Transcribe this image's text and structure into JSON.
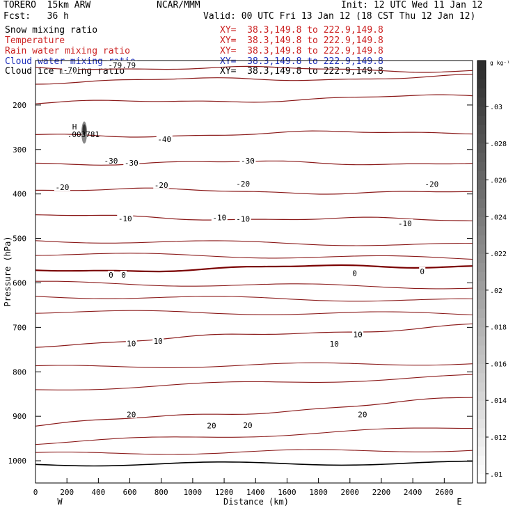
{
  "header": {
    "model": "TORERO  15km ARW",
    "center": "NCAR/MMM",
    "init": "Init: 12 UTC Wed 11 Jan 12",
    "fcst": "Fcst:   36 h",
    "valid": "Valid: 00 UTC Fri 13 Jan 12 (18 CST Thu 12 Jan 12)"
  },
  "fields": [
    {
      "label": "Snow mixing ratio",
      "xy": "XY=  38.3,149.8 to 222.9,149.8",
      "color": "#000000"
    },
    {
      "label": "Temperature",
      "xy": "XY=  38.3,149.8 to 222.9,149.8",
      "color": "#cc2222"
    },
    {
      "label": "Rain water mixing ratio",
      "xy": "XY=  38.3,149.8 to 222.9,149.8",
      "color": "#cc2222"
    },
    {
      "label": "Cloud water mixing ratio",
      "xy": "XY=  38.3,149.8 to 222.9,149.8",
      "color": "#2233bb"
    },
    {
      "label": "Cloud ice mixing ratio",
      "xy": "XY=  38.3,149.8 to 222.9,149.8",
      "color": "#000000"
    }
  ],
  "chart_data": {
    "type": "contour",
    "xlabel": "Distance (km)",
    "ylabel": "Pressure (hPa)",
    "xlim": [
      0,
      2780
    ],
    "ylim": [
      1050,
      100
    ],
    "xticks": [
      0,
      200,
      400,
      600,
      800,
      1000,
      1200,
      1400,
      1600,
      1800,
      2000,
      2200,
      2400,
      2600
    ],
    "yticks": [
      200,
      300,
      400,
      500,
      600,
      700,
      800,
      900,
      1000
    ],
    "x_end_labels": {
      "left": "W",
      "right": "E"
    },
    "max_label": {
      "marker": "H",
      "value": ".003781",
      "x": 310,
      "p": 262
    },
    "isotherms": [
      {
        "value": -70,
        "p_left": 115,
        "p_right": 122
      },
      {
        "value": -60,
        "p_left": 148,
        "p_right": 136
      },
      {
        "value": -50,
        "p_left": 197,
        "p_right": 180
      },
      {
        "value": -40,
        "p_left": 270,
        "p_right": 260
      },
      {
        "value": -30,
        "p_left": 330,
        "p_right": 330
      },
      {
        "value": -20,
        "p_left": 390,
        "p_right": 398
      },
      {
        "value": -10,
        "p_left": 450,
        "p_right": 460
      },
      {
        "value": 0,
        "p_left": 573,
        "p_right": 560
      },
      {
        "value": 10,
        "p_left": 740,
        "p_right": 695
      },
      {
        "value": 20,
        "p_left": 920,
        "p_right": 860
      }
    ],
    "contour_labels": [
      {
        "text": "-70",
        "x": 220,
        "p": 121
      },
      {
        "text": "-79.79",
        "x": 550,
        "p": 110
      },
      {
        "text": "-40",
        "x": 820,
        "p": 277
      },
      {
        "text": "-30",
        "x": 480,
        "p": 325
      },
      {
        "text": "-30",
        "x": 610,
        "p": 330
      },
      {
        "text": "-30",
        "x": 1350,
        "p": 325
      },
      {
        "text": "-20",
        "x": 170,
        "p": 385
      },
      {
        "text": "-20",
        "x": 800,
        "p": 380
      },
      {
        "text": "-20",
        "x": 1320,
        "p": 377
      },
      {
        "text": "-20",
        "x": 2520,
        "p": 378
      },
      {
        "text": "-10",
        "x": 570,
        "p": 455
      },
      {
        "text": "-10",
        "x": 1170,
        "p": 453
      },
      {
        "text": "-10",
        "x": 1320,
        "p": 456
      },
      {
        "text": "-10",
        "x": 2350,
        "p": 466
      },
      {
        "text": "0",
        "x": 480,
        "p": 582
      },
      {
        "text": "0",
        "x": 560,
        "p": 582
      },
      {
        "text": "0",
        "x": 2030,
        "p": 578
      },
      {
        "text": "0",
        "x": 2460,
        "p": 574
      },
      {
        "text": "10",
        "x": 610,
        "p": 736
      },
      {
        "text": "10",
        "x": 780,
        "p": 731
      },
      {
        "text": "10",
        "x": 1900,
        "p": 737
      },
      {
        "text": "10",
        "x": 2050,
        "p": 716
      },
      {
        "text": "20",
        "x": 610,
        "p": 896
      },
      {
        "text": "20",
        "x": 1120,
        "p": 921
      },
      {
        "text": "20",
        "x": 1350,
        "p": 920
      },
      {
        "text": "20",
        "x": 2080,
        "p": 896
      }
    ],
    "colorbar": {
      "unit": "g kg⁻¹",
      "min": 0.0095,
      "max": 0.0325,
      "ticks": [
        ".01",
        ".012",
        ".014",
        ".016",
        ".018",
        ".02",
        ".022",
        ".024",
        ".026",
        ".028",
        ".03"
      ],
      "tick_values": [
        0.01,
        0.012,
        0.014,
        0.016,
        0.018,
        0.02,
        0.022,
        0.024,
        0.026,
        0.028,
        0.03
      ]
    }
  }
}
